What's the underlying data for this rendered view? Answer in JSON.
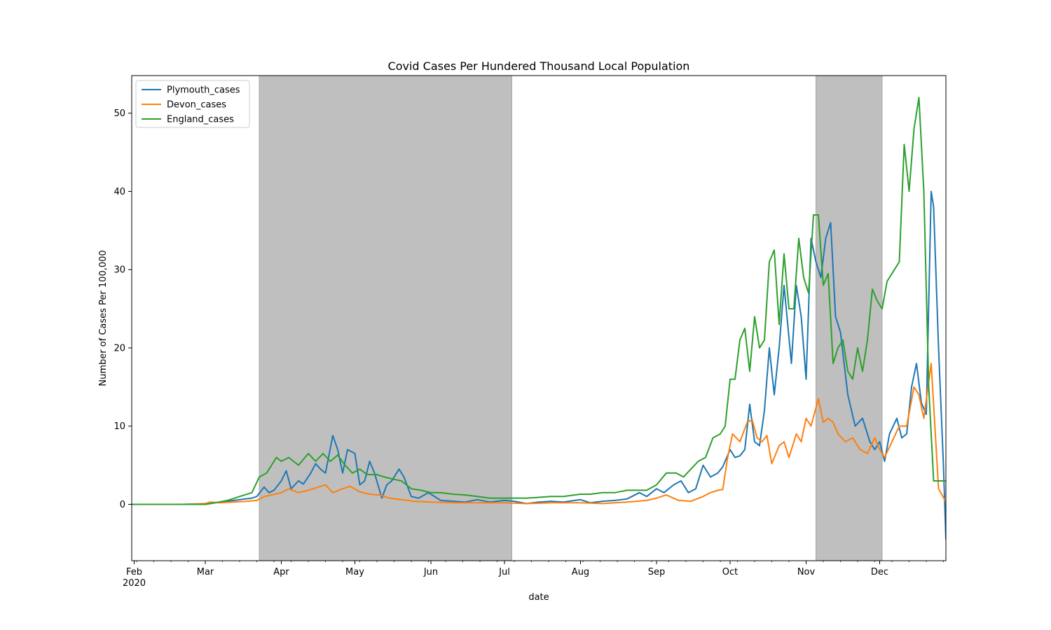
{
  "chart_data": {
    "type": "line",
    "title": "Covid Cases Per Hundered Thousand Local Population",
    "xlabel": "date",
    "ylabel": "Number of Cases Per 100,000",
    "x_range": [
      "2020-01-31",
      "2020-12-28"
    ],
    "ylim": [
      -7.2,
      54.8
    ],
    "yticks": [
      0,
      10,
      20,
      30,
      40,
      50
    ],
    "xticks": [
      {
        "date": "2020-02-01",
        "label": "Feb",
        "sublabel": "2020"
      },
      {
        "date": "2020-03-01",
        "label": "Mar"
      },
      {
        "date": "2020-04-01",
        "label": "Apr"
      },
      {
        "date": "2020-05-01",
        "label": "May"
      },
      {
        "date": "2020-06-01",
        "label": "Jun"
      },
      {
        "date": "2020-07-01",
        "label": "Jul"
      },
      {
        "date": "2020-08-01",
        "label": "Aug"
      },
      {
        "date": "2020-09-01",
        "label": "Sep"
      },
      {
        "date": "2020-10-01",
        "label": "Oct"
      },
      {
        "date": "2020-11-01",
        "label": "Nov"
      },
      {
        "date": "2020-12-01",
        "label": "Dec"
      }
    ],
    "shaded_regions": [
      {
        "start": "2020-03-23",
        "end": "2020-07-04",
        "color": "#bfbfbf"
      },
      {
        "start": "2020-11-05",
        "end": "2020-12-02",
        "color": "#bfbfbf"
      }
    ],
    "legend_position": "top-left",
    "grid": false,
    "series": [
      {
        "name": "Plymouth_cases",
        "color": "#1f77b4",
        "x": [
          "2020-01-31",
          "2020-02-15",
          "2020-03-01",
          "2020-03-05",
          "2020-03-10",
          "2020-03-15",
          "2020-03-20",
          "2020-03-22",
          "2020-03-25",
          "2020-03-27",
          "2020-03-29",
          "2020-04-01",
          "2020-04-03",
          "2020-04-05",
          "2020-04-08",
          "2020-04-10",
          "2020-04-13",
          "2020-04-15",
          "2020-04-17",
          "2020-04-19",
          "2020-04-22",
          "2020-04-24",
          "2020-04-26",
          "2020-04-28",
          "2020-05-01",
          "2020-05-03",
          "2020-05-05",
          "2020-05-07",
          "2020-05-09",
          "2020-05-12",
          "2020-05-14",
          "2020-05-16",
          "2020-05-19",
          "2020-05-21",
          "2020-05-24",
          "2020-05-27",
          "2020-05-31",
          "2020-06-05",
          "2020-06-10",
          "2020-06-15",
          "2020-06-20",
          "2020-06-25",
          "2020-07-01",
          "2020-07-05",
          "2020-07-10",
          "2020-07-15",
          "2020-07-20",
          "2020-07-25",
          "2020-08-01",
          "2020-08-05",
          "2020-08-10",
          "2020-08-15",
          "2020-08-20",
          "2020-08-25",
          "2020-08-28",
          "2020-09-01",
          "2020-09-04",
          "2020-09-08",
          "2020-09-11",
          "2020-09-14",
          "2020-09-17",
          "2020-09-20",
          "2020-09-23",
          "2020-09-26",
          "2020-09-28",
          "2020-10-01",
          "2020-10-03",
          "2020-10-05",
          "2020-10-07",
          "2020-10-09",
          "2020-10-11",
          "2020-10-13",
          "2020-10-15",
          "2020-10-17",
          "2020-10-19",
          "2020-10-21",
          "2020-10-23",
          "2020-10-26",
          "2020-10-28",
          "2020-10-30",
          "2020-11-01",
          "2020-11-03",
          "2020-11-05",
          "2020-11-07",
          "2020-11-09",
          "2020-11-11",
          "2020-11-13",
          "2020-11-15",
          "2020-11-18",
          "2020-11-21",
          "2020-11-24",
          "2020-11-27",
          "2020-11-29",
          "2020-12-01",
          "2020-12-03",
          "2020-12-05",
          "2020-12-08",
          "2020-12-10",
          "2020-12-12",
          "2020-12-14",
          "2020-12-16",
          "2020-12-18",
          "2020-12-20",
          "2020-12-22",
          "2020-12-23",
          "2020-12-25",
          "2020-12-27",
          "2020-12-28"
        ],
        "values": [
          0,
          0,
          0,
          0.2,
          0.4,
          0.6,
          0.8,
          1.0,
          2.2,
          1.5,
          1.8,
          3.0,
          4.3,
          2.0,
          3.0,
          2.6,
          4.0,
          5.2,
          4.5,
          4.0,
          8.8,
          7.0,
          4.0,
          7.0,
          6.5,
          2.5,
          3.0,
          5.5,
          4.0,
          0.8,
          2.5,
          3.0,
          4.5,
          3.5,
          1.0,
          0.8,
          1.5,
          0.5,
          0.4,
          0.3,
          0.6,
          0.3,
          0.5,
          0.4,
          0.1,
          0.3,
          0.4,
          0.3,
          0.6,
          0.2,
          0.4,
          0.5,
          0.7,
          1.5,
          1.0,
          2.0,
          1.5,
          2.5,
          3.0,
          1.5,
          2.0,
          5.0,
          3.5,
          4.0,
          4.8,
          7.0,
          6.0,
          6.2,
          7.0,
          12.8,
          8.0,
          7.5,
          12.0,
          20.0,
          14.0,
          20.0,
          28.0,
          18.0,
          28.0,
          24.0,
          16.0,
          34.0,
          31.0,
          29.0,
          34.0,
          36.0,
          24.0,
          22.0,
          14.0,
          10.0,
          11.0,
          8.0,
          7.0,
          8.0,
          5.5,
          9.0,
          11.0,
          8.5,
          9.0,
          15.0,
          18.0,
          13.0,
          11.5,
          40.0,
          38.0,
          20.0,
          5.0,
          -4.5
        ]
      },
      {
        "name": "Devon_cases",
        "color": "#ff7f0e",
        "x": [
          "2020-01-31",
          "2020-02-20",
          "2020-03-01",
          "2020-03-03",
          "2020-03-07",
          "2020-03-12",
          "2020-03-18",
          "2020-03-22",
          "2020-03-25",
          "2020-03-28",
          "2020-04-01",
          "2020-04-04",
          "2020-04-08",
          "2020-04-12",
          "2020-04-16",
          "2020-04-19",
          "2020-04-22",
          "2020-04-26",
          "2020-04-29",
          "2020-05-03",
          "2020-05-07",
          "2020-05-11",
          "2020-05-15",
          "2020-05-20",
          "2020-05-25",
          "2020-06-01",
          "2020-06-10",
          "2020-06-20",
          "2020-07-01",
          "2020-07-10",
          "2020-07-20",
          "2020-08-01",
          "2020-08-10",
          "2020-08-20",
          "2020-08-28",
          "2020-09-01",
          "2020-09-05",
          "2020-09-10",
          "2020-09-15",
          "2020-09-20",
          "2020-09-23",
          "2020-09-26",
          "2020-09-28",
          "2020-09-30",
          "2020-10-02",
          "2020-10-05",
          "2020-10-08",
          "2020-10-10",
          "2020-10-12",
          "2020-10-14",
          "2020-10-16",
          "2020-10-18",
          "2020-10-21",
          "2020-10-23",
          "2020-10-25",
          "2020-10-28",
          "2020-10-30",
          "2020-11-01",
          "2020-11-03",
          "2020-11-06",
          "2020-11-08",
          "2020-11-10",
          "2020-11-12",
          "2020-11-14",
          "2020-11-17",
          "2020-11-20",
          "2020-11-23",
          "2020-11-26",
          "2020-11-29",
          "2020-12-01",
          "2020-12-03",
          "2020-12-06",
          "2020-12-09",
          "2020-12-12",
          "2020-12-15",
          "2020-12-17",
          "2020-12-19",
          "2020-12-22",
          "2020-12-25",
          "2020-12-28"
        ],
        "values": [
          0,
          0,
          0.1,
          0.3,
          0.2,
          0.3,
          0.4,
          0.5,
          1.0,
          1.2,
          1.5,
          2.0,
          1.5,
          1.8,
          2.2,
          2.5,
          1.5,
          2.0,
          2.3,
          1.6,
          1.3,
          1.2,
          0.8,
          0.6,
          0.4,
          0.3,
          0.2,
          0.2,
          0.2,
          0.1,
          0.2,
          0.2,
          0.1,
          0.3,
          0.5,
          0.8,
          1.2,
          0.5,
          0.4,
          1.0,
          1.5,
          1.8,
          1.9,
          6.0,
          9.0,
          8.0,
          10.5,
          10.8,
          8.5,
          8.0,
          8.8,
          5.2,
          7.5,
          8.0,
          6.0,
          9.0,
          8.0,
          11.0,
          10.0,
          13.5,
          10.5,
          11.0,
          10.5,
          9.0,
          8.0,
          8.5,
          7.0,
          6.5,
          8.5,
          7.0,
          6.0,
          8.0,
          10.0,
          10.0,
          15.0,
          14.0,
          11.0,
          18.0,
          2.0,
          0.3
        ]
      },
      {
        "name": "England_cases",
        "color": "#2ca02c",
        "x": [
          "2020-01-31",
          "2020-02-20",
          "2020-03-01",
          "2020-03-05",
          "2020-03-10",
          "2020-03-15",
          "2020-03-20",
          "2020-03-23",
          "2020-03-26",
          "2020-03-30",
          "2020-04-01",
          "2020-04-04",
          "2020-04-08",
          "2020-04-12",
          "2020-04-15",
          "2020-04-18",
          "2020-04-21",
          "2020-04-24",
          "2020-04-27",
          "2020-04-30",
          "2020-05-03",
          "2020-05-06",
          "2020-05-10",
          "2020-05-13",
          "2020-05-17",
          "2020-05-20",
          "2020-05-24",
          "2020-05-28",
          "2020-06-01",
          "2020-06-05",
          "2020-06-10",
          "2020-06-15",
          "2020-06-20",
          "2020-06-25",
          "2020-07-01",
          "2020-07-05",
          "2020-07-10",
          "2020-07-15",
          "2020-07-20",
          "2020-07-25",
          "2020-08-01",
          "2020-08-05",
          "2020-08-10",
          "2020-08-15",
          "2020-08-20",
          "2020-08-25",
          "2020-08-28",
          "2020-09-01",
          "2020-09-05",
          "2020-09-09",
          "2020-09-12",
          "2020-09-15",
          "2020-09-18",
          "2020-09-21",
          "2020-09-24",
          "2020-09-27",
          "2020-09-29",
          "2020-10-01",
          "2020-10-03",
          "2020-10-05",
          "2020-10-07",
          "2020-10-09",
          "2020-10-11",
          "2020-10-13",
          "2020-10-15",
          "2020-10-17",
          "2020-10-19",
          "2020-10-21",
          "2020-10-23",
          "2020-10-25",
          "2020-10-27",
          "2020-10-29",
          "2020-10-31",
          "2020-11-02",
          "2020-11-04",
          "2020-11-06",
          "2020-11-08",
          "2020-11-10",
          "2020-11-12",
          "2020-11-14",
          "2020-11-16",
          "2020-11-18",
          "2020-11-20",
          "2020-11-22",
          "2020-11-24",
          "2020-11-26",
          "2020-11-28",
          "2020-11-30",
          "2020-12-02",
          "2020-12-04",
          "2020-12-07",
          "2020-12-09",
          "2020-12-11",
          "2020-12-13",
          "2020-12-15",
          "2020-12-17",
          "2020-12-19",
          "2020-12-21",
          "2020-12-23",
          "2020-12-24",
          "2020-12-26",
          "2020-12-28"
        ],
        "values": [
          0,
          0,
          0,
          0.2,
          0.5,
          1.0,
          1.5,
          3.5,
          4.0,
          6.0,
          5.5,
          6.0,
          5.0,
          6.5,
          5.5,
          6.5,
          5.5,
          6.3,
          5.0,
          4.0,
          4.5,
          3.8,
          3.8,
          3.5,
          3.2,
          3.0,
          2.0,
          1.8,
          1.5,
          1.5,
          1.3,
          1.2,
          1.0,
          0.8,
          0.8,
          0.8,
          0.8,
          0.9,
          1.0,
          1.0,
          1.3,
          1.3,
          1.5,
          1.5,
          1.8,
          1.8,
          1.8,
          2.5,
          4.0,
          4.0,
          3.5,
          4.5,
          5.5,
          6.0,
          8.5,
          9.0,
          10.0,
          16.0,
          16.0,
          21.0,
          22.5,
          17.0,
          24.0,
          20.0,
          21.0,
          31.0,
          32.5,
          23.0,
          32.0,
          25.0,
          25.0,
          34.0,
          29.0,
          27.0,
          37.0,
          37.0,
          28.0,
          29.5,
          18.0,
          20.0,
          21.0,
          17.0,
          16.0,
          20.0,
          17.0,
          21.0,
          27.5,
          26.0,
          25.0,
          28.5,
          30.0,
          31.0,
          46.0,
          40.0,
          48.0,
          52.0,
          40.0,
          15.0,
          3.0,
          3.0,
          3.0,
          3.0
        ]
      }
    ]
  }
}
